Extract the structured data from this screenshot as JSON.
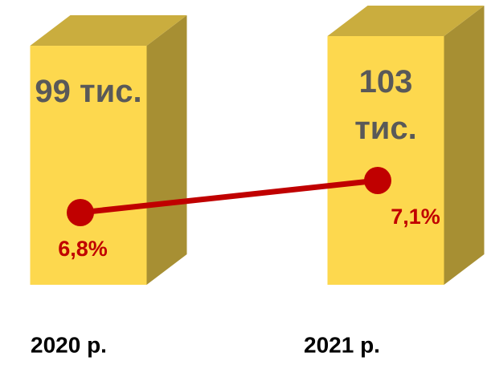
{
  "chart_data": {
    "type": "bar",
    "categories": [
      "2020 р.",
      "2021 р."
    ],
    "values": [
      99,
      103
    ],
    "value_labels": [
      "99 тис.",
      "103 тис."
    ],
    "color": "#fdd84e",
    "series": [
      {
        "type": "line",
        "color": "#c00000",
        "values": [
          6.8,
          7.1
        ],
        "value_labels": [
          "6,8%",
          "7,1%"
        ]
      }
    ]
  }
}
